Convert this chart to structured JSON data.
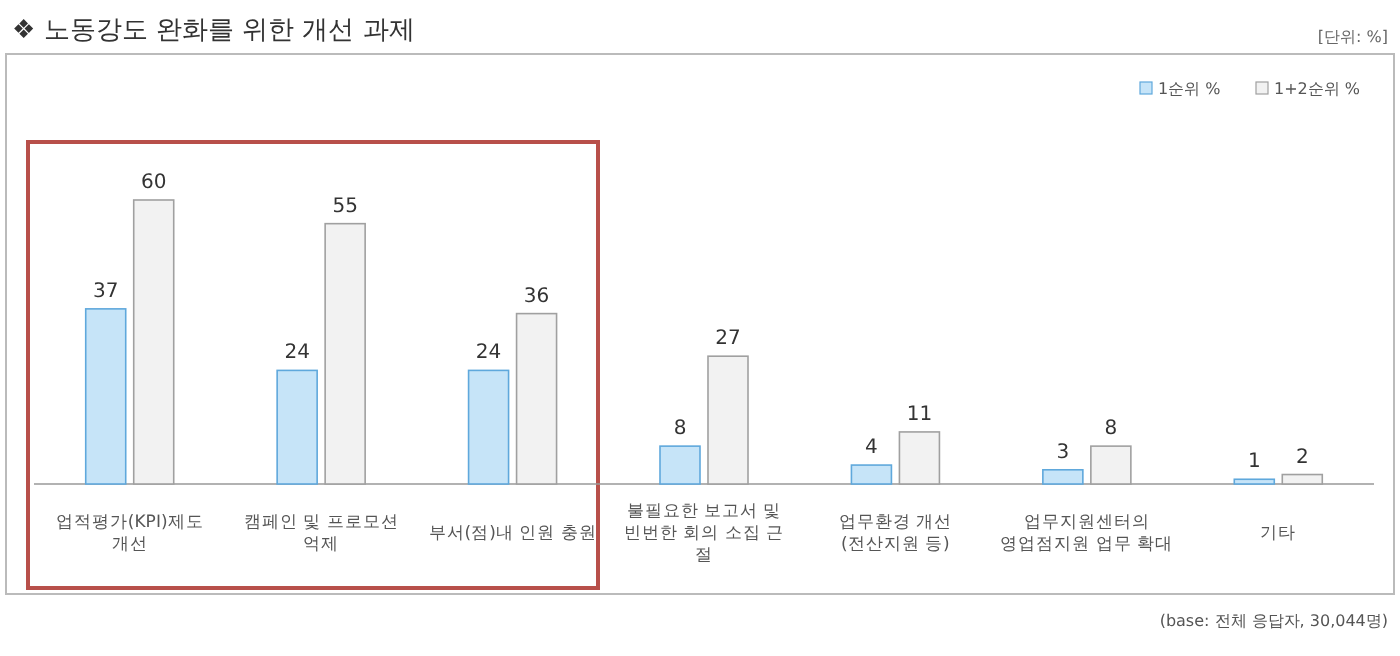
{
  "chart_data": {
    "type": "bar",
    "title": "❖ 노동강도 완화를 위한 개선 과제",
    "categories": [
      "업적평가(KPI)제도\n개선",
      "캠페인 및 프로모션\n억제",
      "부서(점)내 인원 충원",
      "불필요한 보고서 및\n빈번한 회의 소집 근\n절",
      "업무환경 개선\n(전산지원 등)",
      "업무지원센터의\n영업점지원 업무 확대",
      "기타"
    ],
    "series": [
      {
        "name": "1순위 %",
        "color": "#c6e4f8",
        "values": [
          37,
          24,
          24,
          8,
          4,
          3,
          1
        ]
      },
      {
        "name": "1+2순위 %",
        "color": "#f2f2f2",
        "values": [
          60,
          55,
          36,
          27,
          11,
          8,
          2
        ]
      }
    ],
    "data_labels": true,
    "legend": "top right",
    "grid": false,
    "annotations": [
      "[단위: %]",
      "(base: 전체 응답자, 30,044명)"
    ]
  }
}
